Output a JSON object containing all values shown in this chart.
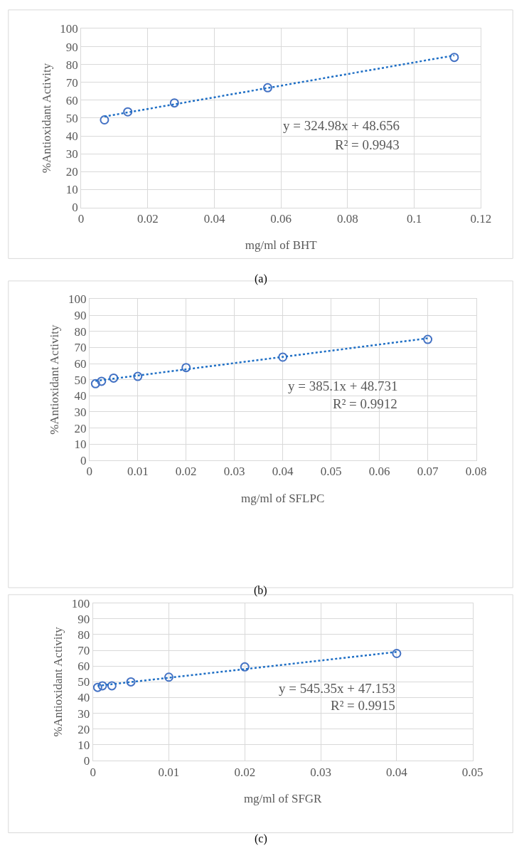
{
  "chart_data": [
    {
      "type": "scatter",
      "xlabel": "mg/ml of BHT",
      "ylabel": "%Antioxidant Activity",
      "xlim": [
        0,
        0.12
      ],
      "xticks": [
        0,
        0.02,
        0.04,
        0.06,
        0.08,
        0.1,
        0.12
      ],
      "ylim": [
        0,
        100
      ],
      "yticks": [
        0,
        10,
        20,
        30,
        40,
        50,
        60,
        70,
        80,
        90,
        100
      ],
      "grid": true,
      "marker": "circle",
      "series": [
        {
          "color": "#4472c4",
          "x": [
            0.007,
            0.014,
            0.028,
            0.056,
            0.112
          ],
          "values": [
            49,
            53.5,
            58.5,
            67,
            84
          ]
        },
        {
          "type": "line",
          "line_style": "dotted",
          "color": "#1f6fc5",
          "marker": "none",
          "x": [
            0.007,
            0.112
          ],
          "values": [
            50.9,
            85.1
          ]
        }
      ],
      "annotations": [
        "y = 324.98x + 48.656",
        "R² = 0.9943",
        "(a)"
      ]
    },
    {
      "type": "scatter",
      "xlabel": "mg/ml of SFLPC",
      "ylabel": "%Antioxidant Activity",
      "xlim": [
        0,
        0.08
      ],
      "xticks": [
        0,
        0.01,
        0.02,
        0.03,
        0.04,
        0.05,
        0.06,
        0.07,
        0.08
      ],
      "ylim": [
        0,
        100
      ],
      "yticks": [
        0,
        10,
        20,
        30,
        40,
        50,
        60,
        70,
        80,
        90,
        100
      ],
      "grid": true,
      "marker": "circle",
      "series": [
        {
          "color": "#4472c4",
          "x": [
            0.00125,
            0.0025,
            0.005,
            0.01,
            0.02,
            0.04,
            0.07
          ],
          "values": [
            47.5,
            49,
            51,
            52,
            57.5,
            64,
            75
          ]
        },
        {
          "type": "line",
          "line_style": "dotted",
          "color": "#1f6fc5",
          "marker": "none",
          "x": [
            0.00125,
            0.07
          ],
          "values": [
            49.2,
            75.7
          ]
        }
      ],
      "annotations": [
        "y = 385.1x + 48.731",
        "R² = 0.9912",
        "(b)"
      ]
    },
    {
      "type": "scatter",
      "xlabel": "mg/ml of SFGR",
      "ylabel": "%Antioxidant Activity",
      "xlim": [
        0,
        0.05
      ],
      "xticks": [
        0,
        0.01,
        0.02,
        0.03,
        0.04,
        0.05
      ],
      "ylim": [
        0,
        100
      ],
      "yticks": [
        0,
        10,
        20,
        30,
        40,
        50,
        60,
        70,
        80,
        90,
        100
      ],
      "grid": true,
      "marker": "circle",
      "series": [
        {
          "color": "#4472c4",
          "x": [
            0.000625,
            0.00125,
            0.0025,
            0.005,
            0.01,
            0.02,
            0.04
          ],
          "values": [
            46.5,
            47.5,
            47.5,
            50,
            53,
            59.5,
            68
          ]
        },
        {
          "type": "line",
          "line_style": "dotted",
          "color": "#1f6fc5",
          "marker": "none",
          "x": [
            0.000625,
            0.04
          ],
          "values": [
            47.5,
            69.0
          ]
        }
      ],
      "annotations": [
        "y = 545.35x + 47.153",
        "R² = 0.9915",
        "(c)"
      ]
    }
  ]
}
